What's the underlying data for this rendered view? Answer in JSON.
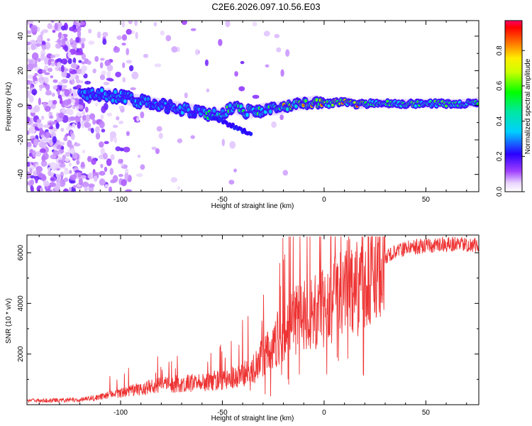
{
  "title": "C2E6.2026.097.10.56.E03",
  "chart_data": [
    {
      "type": "heatmap",
      "xlabel": "Height of straight line (km)",
      "ylabel": "Frequency (Hz)",
      "xlim": [
        -146,
        76
      ],
      "ylim": [
        -50,
        49
      ],
      "x_ticks": [
        -100,
        -50,
        0,
        50
      ],
      "x_tick_labels": [
        "-100",
        "-50",
        "0",
        "50"
      ],
      "y_ticks": [
        -40,
        -20,
        0,
        20,
        40
      ],
      "y_tick_labels": [
        "-40",
        "-20",
        "0",
        "20",
        "40"
      ],
      "trace": {
        "x": [
          -118,
          -110,
          -100,
          -90,
          -80,
          -70,
          -60,
          -52,
          -48,
          -44,
          -40,
          -36,
          -32,
          -28,
          -24,
          -20,
          -16,
          -12,
          -8,
          -4,
          0,
          4,
          8,
          12,
          16,
          20,
          30,
          40,
          50,
          60,
          70,
          76
        ],
        "y": [
          6,
          6,
          5,
          2,
          0,
          -2,
          -4,
          -6,
          -3,
          -1,
          -3,
          -4,
          -3,
          -2,
          -2,
          -1,
          0,
          1,
          1,
          2,
          1,
          1,
          2,
          2,
          0,
          1,
          1,
          1,
          1,
          1,
          1,
          2
        ]
      },
      "colorbar": {
        "label": "Normalized spectral amplitude",
        "ticks": [
          0.0,
          0.2,
          0.4,
          0.6,
          0.8
        ],
        "tick_labels": [
          "0.0",
          "0.2",
          "0.4",
          "0.6",
          "0.8"
        ],
        "range": [
          0,
          0.97
        ]
      }
    },
    {
      "type": "line",
      "xlabel": "Height of straight line (km)",
      "ylabel": "SNR (10 * v/v)",
      "xlim": [
        -146,
        76
      ],
      "ylim": [
        0,
        6700
      ],
      "x_ticks": [
        -100,
        -50,
        0,
        50
      ],
      "x_tick_labels": [
        "-100",
        "-50",
        "0",
        "50"
      ],
      "y_ticks": [
        2000,
        4000,
        6000
      ],
      "y_tick_labels": [
        "2000",
        "4000",
        "6000"
      ],
      "color": "#ee3333",
      "envelope": {
        "x": [
          -146,
          -120,
          -110,
          -100,
          -90,
          -80,
          -70,
          -60,
          -50,
          -40,
          -35,
          -30,
          -25,
          -20,
          -15,
          -10,
          -5,
          0,
          5,
          10,
          15,
          20,
          25,
          30,
          35,
          40,
          50,
          60,
          70,
          76
        ],
        "y": [
          150,
          180,
          300,
          450,
          600,
          750,
          800,
          850,
          950,
          1150,
          1400,
          1800,
          2300,
          2800,
          3100,
          3400,
          3600,
          3700,
          4000,
          4300,
          4600,
          5000,
          5400,
          5800,
          6000,
          6150,
          6250,
          6300,
          6300,
          6300
        ]
      }
    }
  ]
}
